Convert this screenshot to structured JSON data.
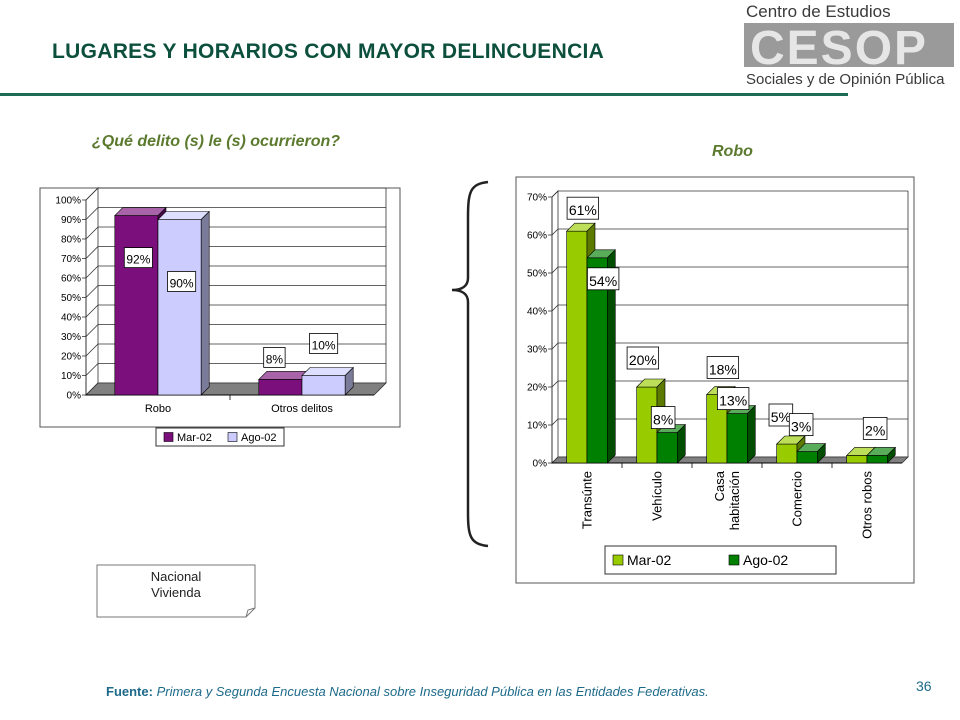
{
  "slide": {
    "title": "LUGARES Y HORARIOS CON MAYOR DELINCUENCIA",
    "subtitle_left": "¿Qué delito (s) le (s) ocurrieron?",
    "subtitle_right": "Robo",
    "logo": {
      "line1": "Centro de Estudios",
      "mark": "CESOP",
      "line2": "Sociales y de Opinión Pública"
    },
    "note_line1": "Nacional",
    "note_line2": "Vivienda",
    "source_label": "Fuente:",
    "source_text": "Primera y Segunda Encuesta Nacional sobre Inseguridad Pública en las Entidades Federativas.",
    "page_number": "36",
    "colors": {
      "title": "#0b4f3c",
      "subtitle": "#5b7a2e",
      "footer": "#1d6a8a"
    }
  },
  "chart_data": [
    {
      "type": "bar",
      "categories": [
        "Robo",
        "Otros delitos"
      ],
      "series": [
        {
          "name": "Mar-02",
          "values": [
            92,
            8
          ],
          "labels": [
            "92%",
            "8%"
          ],
          "color": "#7b0f7b"
        },
        {
          "name": "Ago-02",
          "values": [
            90,
            10
          ],
          "labels": [
            "90%",
            "10%"
          ],
          "color": "#ccccff"
        }
      ],
      "ylim": [
        0,
        100
      ],
      "yticks": [
        "0%",
        "10%",
        "20%",
        "30%",
        "40%",
        "50%",
        "60%",
        "70%",
        "80%",
        "90%",
        "100%"
      ],
      "legend_position": "bottom",
      "grid": true
    },
    {
      "type": "bar",
      "categories": [
        "Transúnte",
        "Vehículo",
        "Casa habitación",
        "Comercio",
        "Otros robos"
      ],
      "category_lines": [
        [
          "Transúnte"
        ],
        [
          "Vehículo"
        ],
        [
          "Casa",
          "habitación"
        ],
        [
          "Comercio"
        ],
        [
          "Otros robos"
        ]
      ],
      "series": [
        {
          "name": "Mar-02",
          "values": [
            61,
            20,
            18,
            5,
            2
          ],
          "labels": [
            "61%",
            "20%",
            "18%",
            "5%",
            ""
          ],
          "color": "#99cc00"
        },
        {
          "name": "Ago-02",
          "values": [
            54,
            8,
            13,
            3,
            2
          ],
          "labels": [
            "54%",
            "8%",
            "13%",
            "3%",
            "2%"
          ],
          "color": "#008000"
        }
      ],
      "ylim": [
        0,
        70
      ],
      "yticks": [
        "0%",
        "10%",
        "20%",
        "30%",
        "40%",
        "50%",
        "60%",
        "70%"
      ],
      "legend_position": "bottom",
      "grid": true
    }
  ]
}
